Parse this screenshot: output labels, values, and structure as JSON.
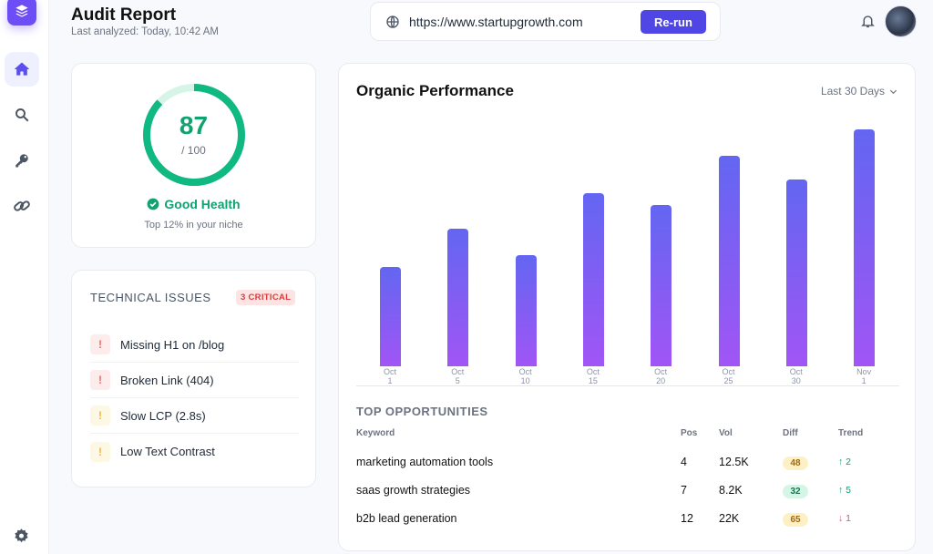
{
  "header": {
    "title": "Audit Report",
    "subtitle": "Last analyzed: Today, 10:42 AM"
  },
  "urlbar": {
    "icon": "globe-icon",
    "url": "https://www.startupgrowth.com",
    "button": "Re-run"
  },
  "sidebar": {
    "items": [
      {
        "name": "home",
        "icon": "home-icon",
        "active": true
      },
      {
        "name": "search",
        "icon": "search-icon"
      },
      {
        "name": "keys",
        "icon": "key-icon"
      },
      {
        "name": "links",
        "icon": "link-icon"
      }
    ],
    "bottom": "gear-icon"
  },
  "score": {
    "value": "87",
    "max": "/ 100",
    "status": "Good Health",
    "note": "Top 12% in your niche",
    "color": "#10a36f"
  },
  "issues": {
    "title": "TECHNICAL ISSUES",
    "badge": "3 CRITICAL",
    "items": [
      {
        "label": "Missing H1 on /blog",
        "severity": "critical"
      },
      {
        "label": "Broken Link (404)",
        "severity": "critical"
      },
      {
        "label": "Slow LCP (2.8s)",
        "severity": "warning"
      },
      {
        "label": "Low Text Contrast",
        "severity": "warning"
      }
    ]
  },
  "performance": {
    "title": "Organic Performance",
    "range": "Last 30 Days"
  },
  "chart_data": {
    "type": "bar",
    "title": "Organic Performance",
    "categories": [
      "Oct 1",
      "Oct 5",
      "Oct 10",
      "Oct 15",
      "Oct 20",
      "Oct 25",
      "Oct 30",
      "Nov 1"
    ],
    "values": [
      42,
      58,
      47,
      73,
      68,
      89,
      79,
      100
    ],
    "xlabel": "",
    "ylabel": "",
    "grid": false,
    "colors": [
      "#6366f1",
      "#a155f5"
    ]
  },
  "x_labels": [
    [
      "Oct",
      "1"
    ],
    [
      "Oct",
      "5"
    ],
    [
      "Oct",
      "10"
    ],
    [
      "Oct",
      "15"
    ],
    [
      "Oct",
      "20"
    ],
    [
      "Oct",
      "25"
    ],
    [
      "Oct",
      "30"
    ],
    [
      "Nov",
      "1"
    ]
  ],
  "opportunities": {
    "title": "TOP OPPORTUNITIES",
    "columns": [
      "Keyword",
      "Pos",
      "Vol",
      "Diff",
      "Trend"
    ],
    "rows": [
      {
        "keyword": "marketing automation tools",
        "pos": "4",
        "vol": "12.5K",
        "diff": "48",
        "diff_level": "yellow",
        "trend": "↑ 2",
        "trend_dir": "up"
      },
      {
        "keyword": "saas growth strategies",
        "pos": "7",
        "vol": "8.2K",
        "diff": "32",
        "diff_level": "green",
        "trend": "↑ 5",
        "trend_dir": "up"
      },
      {
        "keyword": "b2b lead generation",
        "pos": "12",
        "vol": "22K",
        "diff": "65",
        "diff_level": "yellow",
        "trend": "↓ 1",
        "trend_dir": "down"
      }
    ]
  }
}
